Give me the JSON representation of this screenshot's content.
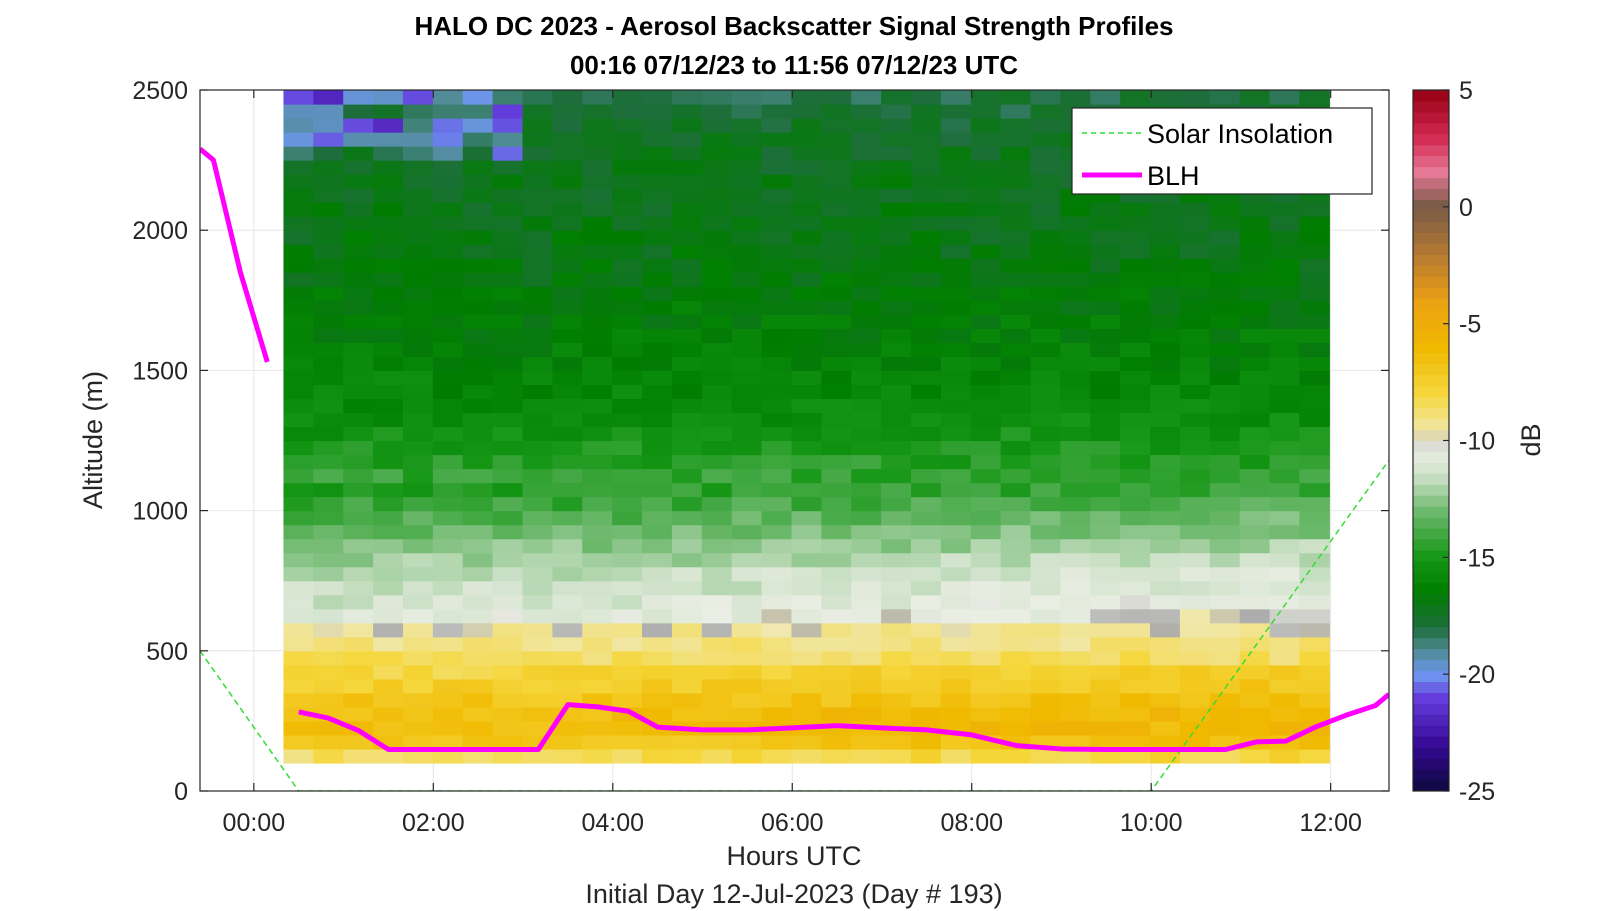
{
  "chart_data": {
    "type": "heatmap",
    "title": "HALO DC 2023 - Aerosol Backscatter Signal Strength Profiles",
    "subtitle": "00:16 07/12/23 to 11:56 07/12/23  UTC",
    "xlabel": "Hours UTC",
    "xlabel2": "Initial Day 12-Jul-2023 (Day # 193)",
    "ylabel": "Altitude (m)",
    "xlim": [
      -0.6,
      12.65
    ],
    "ylim": [
      0,
      2500
    ],
    "xticks": [
      {
        "value": 0,
        "label": "00:00"
      },
      {
        "value": 2,
        "label": "02:00"
      },
      {
        "value": 4,
        "label": "04:00"
      },
      {
        "value": 6,
        "label": "06:00"
      },
      {
        "value": 8,
        "label": "08:00"
      },
      {
        "value": 10,
        "label": "10:00"
      },
      {
        "value": 12,
        "label": "12:00"
      }
    ],
    "yticks": [
      {
        "value": 0,
        "label": "0"
      },
      {
        "value": 500,
        "label": "500"
      },
      {
        "value": 1000,
        "label": "1000"
      },
      {
        "value": 1500,
        "label": "1500"
      },
      {
        "value": 2000,
        "label": "2000"
      },
      {
        "value": 2500,
        "label": "2500"
      }
    ],
    "grid": true,
    "colorbar": {
      "label": "dB",
      "range": [
        -25,
        5
      ],
      "ticks": [
        {
          "value": 5,
          "label": "5"
        },
        {
          "value": 0,
          "label": "0"
        },
        {
          "value": -5,
          "label": "-5"
        },
        {
          "value": -10,
          "label": "-10"
        },
        {
          "value": -15,
          "label": "-15"
        },
        {
          "value": -20,
          "label": "-20"
        },
        {
          "value": -25,
          "label": "-25"
        }
      ]
    },
    "heatmap": {
      "x_start": 0.33,
      "x_step": 0.333,
      "ncols": 35,
      "altitudes": [
        125,
        175,
        225,
        275,
        325,
        375,
        425,
        475,
        525,
        575,
        625,
        675,
        725,
        775,
        825,
        875,
        925,
        975,
        1025,
        1075,
        1125,
        1175,
        1225,
        1275,
        1325,
        1375,
        1425,
        1475,
        1525,
        1575,
        1625,
        1675,
        1725,
        1775,
        1825,
        1875,
        1925,
        1975,
        2025,
        2075,
        2125,
        2175,
        2225,
        2275,
        2325,
        2375,
        2425,
        2475
      ],
      "cell_height_m": 50,
      "unit": "dB",
      "approximate_profile_dB": [
        -8.5,
        -7.0,
        -6.5,
        -6.5,
        -7.0,
        -7.5,
        -8.0,
        -8.5,
        -9.0,
        -9.5,
        -10.0,
        -10.5,
        -10.8,
        -11.0,
        -11.5,
        -12.0,
        -12.5,
        -13.0,
        -13.5,
        -14.0,
        -14.3,
        -14.6,
        -14.9,
        -15.2,
        -15.5,
        -15.7,
        -15.9,
        -16.0,
        -16.2,
        -16.3,
        -16.4,
        -16.5,
        -16.6,
        -16.7,
        -16.8,
        -16.9,
        -17.0,
        -17.0,
        -17.1,
        -17.1,
        -17.2,
        -17.2,
        -17.3,
        -17.4,
        -17.5,
        -17.6,
        -17.8,
        -18.0
      ]
    },
    "series": [
      {
        "name": "Solar Insolation",
        "style": "dashed",
        "color": "#33dd33",
        "x": [
          -0.6,
          0.5,
          10.0,
          12.65
        ],
        "y": [
          500,
          0,
          0,
          1180
        ]
      },
      {
        "name": "BLH",
        "style": "solid",
        "color": "#ff00ff",
        "segments": [
          {
            "x": [
              -0.6,
              -0.45,
              -0.15,
              0.15
            ],
            "y": [
              2290,
              2250,
              1850,
              1530
            ]
          },
          {
            "x": [
              0.5,
              0.83,
              1.17,
              1.5,
              2.0,
              2.5,
              3.17,
              3.5,
              3.83,
              4.17,
              4.5,
              5.0,
              5.5,
              6.0,
              6.5,
              7.0,
              7.5,
              8.0,
              8.5,
              9.0,
              9.5,
              10.0,
              10.5,
              10.83,
              11.17,
              11.5,
              11.83,
              12.17,
              12.5,
              12.65
            ],
            "y": [
              282,
              260,
              215,
              148,
              148,
              148,
              148,
              308,
              300,
              285,
              228,
              218,
              218,
              225,
              233,
              225,
              218,
              200,
              162,
              150,
              148,
              148,
              148,
              148,
              175,
              178,
              228,
              270,
              305,
              345
            ]
          }
        ]
      }
    ],
    "legend": {
      "position": "top-right",
      "entries": [
        "Solar Insolation",
        "BLH"
      ]
    }
  }
}
